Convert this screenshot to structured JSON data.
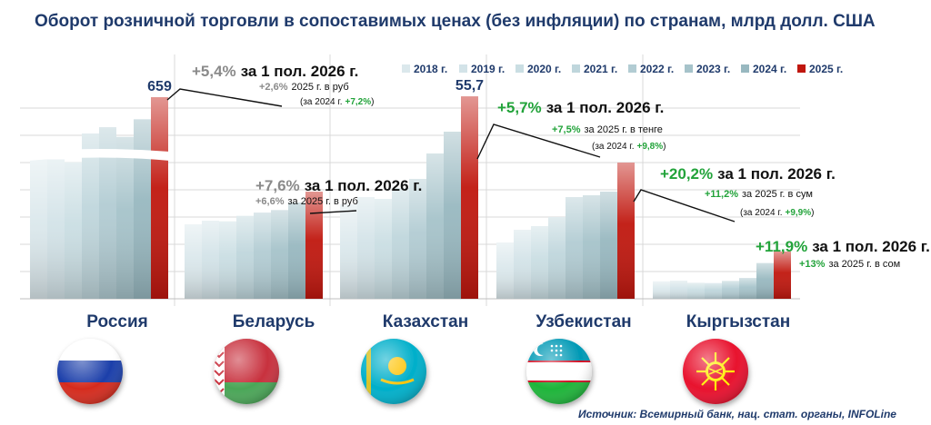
{
  "title": "Оборот розничной торговли в сопоставимых ценах (без инфляции) по странам, млрд долл. США",
  "source": "Источник: Всемирный банк, нац. стат. органы, INFOLine",
  "colors": {
    "title": "#1f3a6b",
    "highlight": "#c0170e",
    "positive": "#22a33a",
    "neutral": "#8a8a8a",
    "gridline": "#d9d9d9",
    "series": [
      "#dbe8ec",
      "#d3e3e8",
      "#cadee3",
      "#bfd6dc",
      "#b2ccd3",
      "#a6c3ca",
      "#98b8c0",
      "#c0170e"
    ]
  },
  "chart_data": {
    "type": "bar",
    "legend_position": "top-right",
    "axis_break": "Россия",
    "series_names": [
      "2018 г.",
      "2019 г.",
      "2020 г.",
      "2021 г.",
      "2022 г.",
      "2023 г.",
      "2024 г.",
      "2025 г."
    ],
    "groups": [
      {
        "country": "Россия",
        "flag": "russia-flag",
        "values": [
          580,
          578,
          566,
          595,
          606,
          589,
          620,
          659
        ],
        "data_label": "659",
        "annotation": {
          "main_pct": "+5,4%",
          "main_color": "neutral",
          "main_text": "за 1 пол. 2026 г.",
          "line2_pct": "+2,6%",
          "line2_color": "neutral",
          "line2_text": "2025 г. в руб",
          "line3_prefix": "(за 2024 г.",
          "line3_pct": "+7,2%",
          "line3_suffix": ")"
        }
      },
      {
        "country": "Беларусь",
        "flag": "belarus-flag",
        "values": [
          20.5,
          21.5,
          21.3,
          22.8,
          23.7,
          24.4,
          26.5,
          29.5
        ],
        "annotation": {
          "main_pct": "+7,6%",
          "main_color": "neutral",
          "main_text": "за 1 пол. 2026 г.",
          "line2_pct": "+6,6%",
          "line2_color": "neutral",
          "line2_text": "за 2025 г. в руб"
        }
      },
      {
        "country": "Казахстан",
        "flag": "kazakhstan-flag",
        "values": [
          26,
          28,
          27.5,
          30.5,
          33,
          40,
          46,
          55.7
        ],
        "data_label": "55,7",
        "annotation": {
          "main_pct": "+5,7%",
          "main_color": "positive",
          "main_text": "за 1 пол. 2026 г.",
          "line2_pct": "+7,5%",
          "line2_color": "positive",
          "line2_text": "за 2025 г. в тенге",
          "line3_prefix": "(за 2024 г.",
          "line3_pct": "+9,8%",
          "line3_suffix": ")"
        }
      },
      {
        "country": "Узбекистан",
        "flag": "uzbekistan-flag",
        "values": [
          15.5,
          19,
          20,
          22.5,
          28,
          28.5,
          29.5,
          37.5
        ],
        "annotation": {
          "main_pct": "+20,2%",
          "main_color": "positive",
          "main_text": "за 1 пол. 2026 г.",
          "line2_pct": "+11,2%",
          "line2_color": "positive",
          "line2_text": "за 2025 г. в сум",
          "line3_prefix": "(за 2024 г.",
          "line3_pct": "+9,9%",
          "line3_suffix": ")"
        }
      },
      {
        "country": "Кыргызстан",
        "flag": "kyrgyzstan-flag",
        "values": [
          4.8,
          5,
          4.4,
          4.3,
          4.9,
          5.7,
          9.8,
          13
        ],
        "annotation": {
          "main_pct": "+11,9%",
          "main_color": "positive",
          "main_text": "за 1 пол. 2026 г.",
          "line2_pct": "+13%",
          "line2_color": "positive",
          "line2_text": "за 2025 г. в сом"
        }
      }
    ]
  }
}
